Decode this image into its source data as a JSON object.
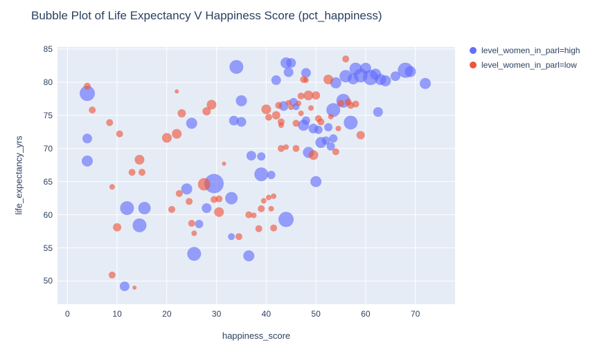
{
  "colors": {
    "high": "#636efa",
    "low": "#ef553b",
    "plot_background": "#e5ecf6",
    "grid": "#ffffff",
    "text": "#2a3f5f"
  },
  "chart_data": {
    "type": "scatter",
    "title": "Bubble Plot of Life Expectancy V Happiness Score (pct_happiness)",
    "xlabel": "happiness_score",
    "ylabel": "life_expectancy_yrs",
    "xlim": [
      -2,
      78
    ],
    "ylim": [
      46.5,
      85.3
    ],
    "x_ticks": [
      0,
      10,
      20,
      30,
      40,
      50,
      60,
      70
    ],
    "y_ticks": [
      50,
      55,
      60,
      65,
      70,
      75,
      80,
      85
    ],
    "grid": true,
    "legend_position": "top-right-outside",
    "marker_opacity": 0.63,
    "series": [
      {
        "name": "level_women_in_parl=high",
        "color": "#636efa",
        "points": [
          [
            4,
            78.3,
            11
          ],
          [
            4,
            71.5,
            7
          ],
          [
            4,
            68.1,
            8
          ],
          [
            11.5,
            49.2,
            7
          ],
          [
            12,
            61,
            10
          ],
          [
            14.5,
            58.4,
            10
          ],
          [
            15.5,
            61,
            9
          ],
          [
            24,
            63.9,
            8
          ],
          [
            25,
            73.8,
            8
          ],
          [
            25.5,
            54.1,
            10
          ],
          [
            26.5,
            58.6,
            6
          ],
          [
            28,
            61,
            7
          ],
          [
            29.5,
            64.7,
            14
          ],
          [
            33,
            62.5,
            9
          ],
          [
            33,
            56.7,
            5
          ],
          [
            34,
            82.3,
            10
          ],
          [
            33.5,
            74.2,
            7
          ],
          [
            35,
            74,
            7
          ],
          [
            35,
            77.2,
            8
          ],
          [
            36.5,
            53.8,
            8
          ],
          [
            37,
            68.9,
            7
          ],
          [
            39,
            68.8,
            6
          ],
          [
            39,
            66.1,
            10
          ],
          [
            41,
            66,
            6
          ],
          [
            44,
            59.3,
            11
          ],
          [
            42,
            80.3,
            7
          ],
          [
            44,
            82.9,
            8
          ],
          [
            45,
            82.9,
            7
          ],
          [
            44.5,
            81.5,
            7
          ],
          [
            43.5,
            76.4,
            7
          ],
          [
            45.5,
            77,
            6
          ],
          [
            46,
            76.3,
            5
          ],
          [
            47.5,
            73.5,
            8
          ],
          [
            48,
            74.2,
            6
          ],
          [
            48,
            81.4,
            7
          ],
          [
            48.5,
            69.4,
            8
          ],
          [
            49.5,
            73,
            7
          ],
          [
            50,
            65,
            8
          ],
          [
            50.5,
            72.8,
            6
          ],
          [
            51,
            70.9,
            8
          ],
          [
            52,
            71.2,
            6
          ],
          [
            52.5,
            73.2,
            6
          ],
          [
            53,
            70.3,
            6
          ],
          [
            53.5,
            71.5,
            6
          ],
          [
            53.5,
            75.8,
            10
          ],
          [
            54,
            79.9,
            8
          ],
          [
            55.5,
            77.2,
            10
          ],
          [
            56,
            80.9,
            9
          ],
          [
            57,
            73.9,
            10
          ],
          [
            57.5,
            80.5,
            8
          ],
          [
            58,
            82,
            9
          ],
          [
            59,
            81,
            10
          ],
          [
            60,
            82.1,
            8
          ],
          [
            61,
            80.7,
            11
          ],
          [
            62,
            81.2,
            8
          ],
          [
            62.5,
            75.5,
            7
          ],
          [
            63,
            80.4,
            8
          ],
          [
            64,
            80.2,
            8
          ],
          [
            66,
            80.9,
            7
          ],
          [
            68,
            81.8,
            11
          ],
          [
            69,
            81.6,
            8
          ],
          [
            72,
            79.8,
            8
          ]
        ]
      },
      {
        "name": "level_women_in_parl=low",
        "color": "#ef553b",
        "points": [
          [
            4,
            79.4,
            5
          ],
          [
            5,
            75.8,
            5
          ],
          [
            8.5,
            73.9,
            5
          ],
          [
            9,
            64.2,
            4
          ],
          [
            9,
            50.9,
            5
          ],
          [
            10,
            58.1,
            6
          ],
          [
            10.5,
            72.2,
            5
          ],
          [
            13,
            66.4,
            5
          ],
          [
            13.5,
            49,
            3
          ],
          [
            14.5,
            68.3,
            7
          ],
          [
            15,
            66.4,
            5
          ],
          [
            20,
            71.6,
            7
          ],
          [
            21,
            60.8,
            5
          ],
          [
            22,
            78.6,
            3
          ],
          [
            22,
            72.2,
            7
          ],
          [
            22.5,
            63.2,
            5
          ],
          [
            23,
            75.3,
            6
          ],
          [
            24.5,
            62,
            5
          ],
          [
            25,
            58.7,
            5
          ],
          [
            25.5,
            57.2,
            4
          ],
          [
            27.5,
            64.6,
            9
          ],
          [
            28,
            75.6,
            6
          ],
          [
            29,
            76.6,
            7
          ],
          [
            29.5,
            62.3,
            5
          ],
          [
            30.5,
            62.4,
            5
          ],
          [
            30.5,
            60.4,
            7
          ],
          [
            31.5,
            67.7,
            3
          ],
          [
            34.5,
            56.7,
            5
          ],
          [
            36.5,
            60,
            5
          ],
          [
            37.5,
            59.9,
            4
          ],
          [
            38.5,
            57.9,
            5
          ],
          [
            39,
            60.9,
            5
          ],
          [
            39.5,
            62.1,
            4
          ],
          [
            40,
            75.9,
            7
          ],
          [
            40.5,
            74.7,
            5
          ],
          [
            40.5,
            62.6,
            4
          ],
          [
            41.5,
            62.8,
            4
          ],
          [
            41,
            60.9,
            4
          ],
          [
            41.5,
            58,
            5
          ],
          [
            42,
            75,
            6
          ],
          [
            42.5,
            76.5,
            5
          ],
          [
            43,
            70,
            5
          ],
          [
            43,
            74,
            5
          ],
          [
            43,
            73.5,
            4
          ],
          [
            44,
            70.2,
            4
          ],
          [
            44.5,
            76.9,
            4
          ],
          [
            45,
            76.2,
            4
          ],
          [
            46,
            70,
            5
          ],
          [
            46,
            73.8,
            5
          ],
          [
            46.5,
            76.8,
            4
          ],
          [
            47,
            75.3,
            4
          ],
          [
            47,
            77.9,
            5
          ],
          [
            47.5,
            80.4,
            5
          ],
          [
            48,
            80.3,
            4
          ],
          [
            48.5,
            78,
            7
          ],
          [
            49,
            76.1,
            4
          ],
          [
            49.5,
            69,
            7
          ],
          [
            50,
            78,
            6
          ],
          [
            50.5,
            74.5,
            5
          ],
          [
            51,
            74,
            5
          ],
          [
            52.5,
            80.4,
            7
          ],
          [
            53,
            74.8,
            4
          ],
          [
            54,
            69.5,
            5
          ],
          [
            54.5,
            73,
            4
          ],
          [
            55,
            76.8,
            5
          ],
          [
            56,
            83.5,
            5
          ],
          [
            56.5,
            77,
            5
          ],
          [
            57,
            76.5,
            5
          ],
          [
            58,
            76.7,
            5
          ],
          [
            59,
            72,
            6
          ]
        ]
      }
    ]
  }
}
